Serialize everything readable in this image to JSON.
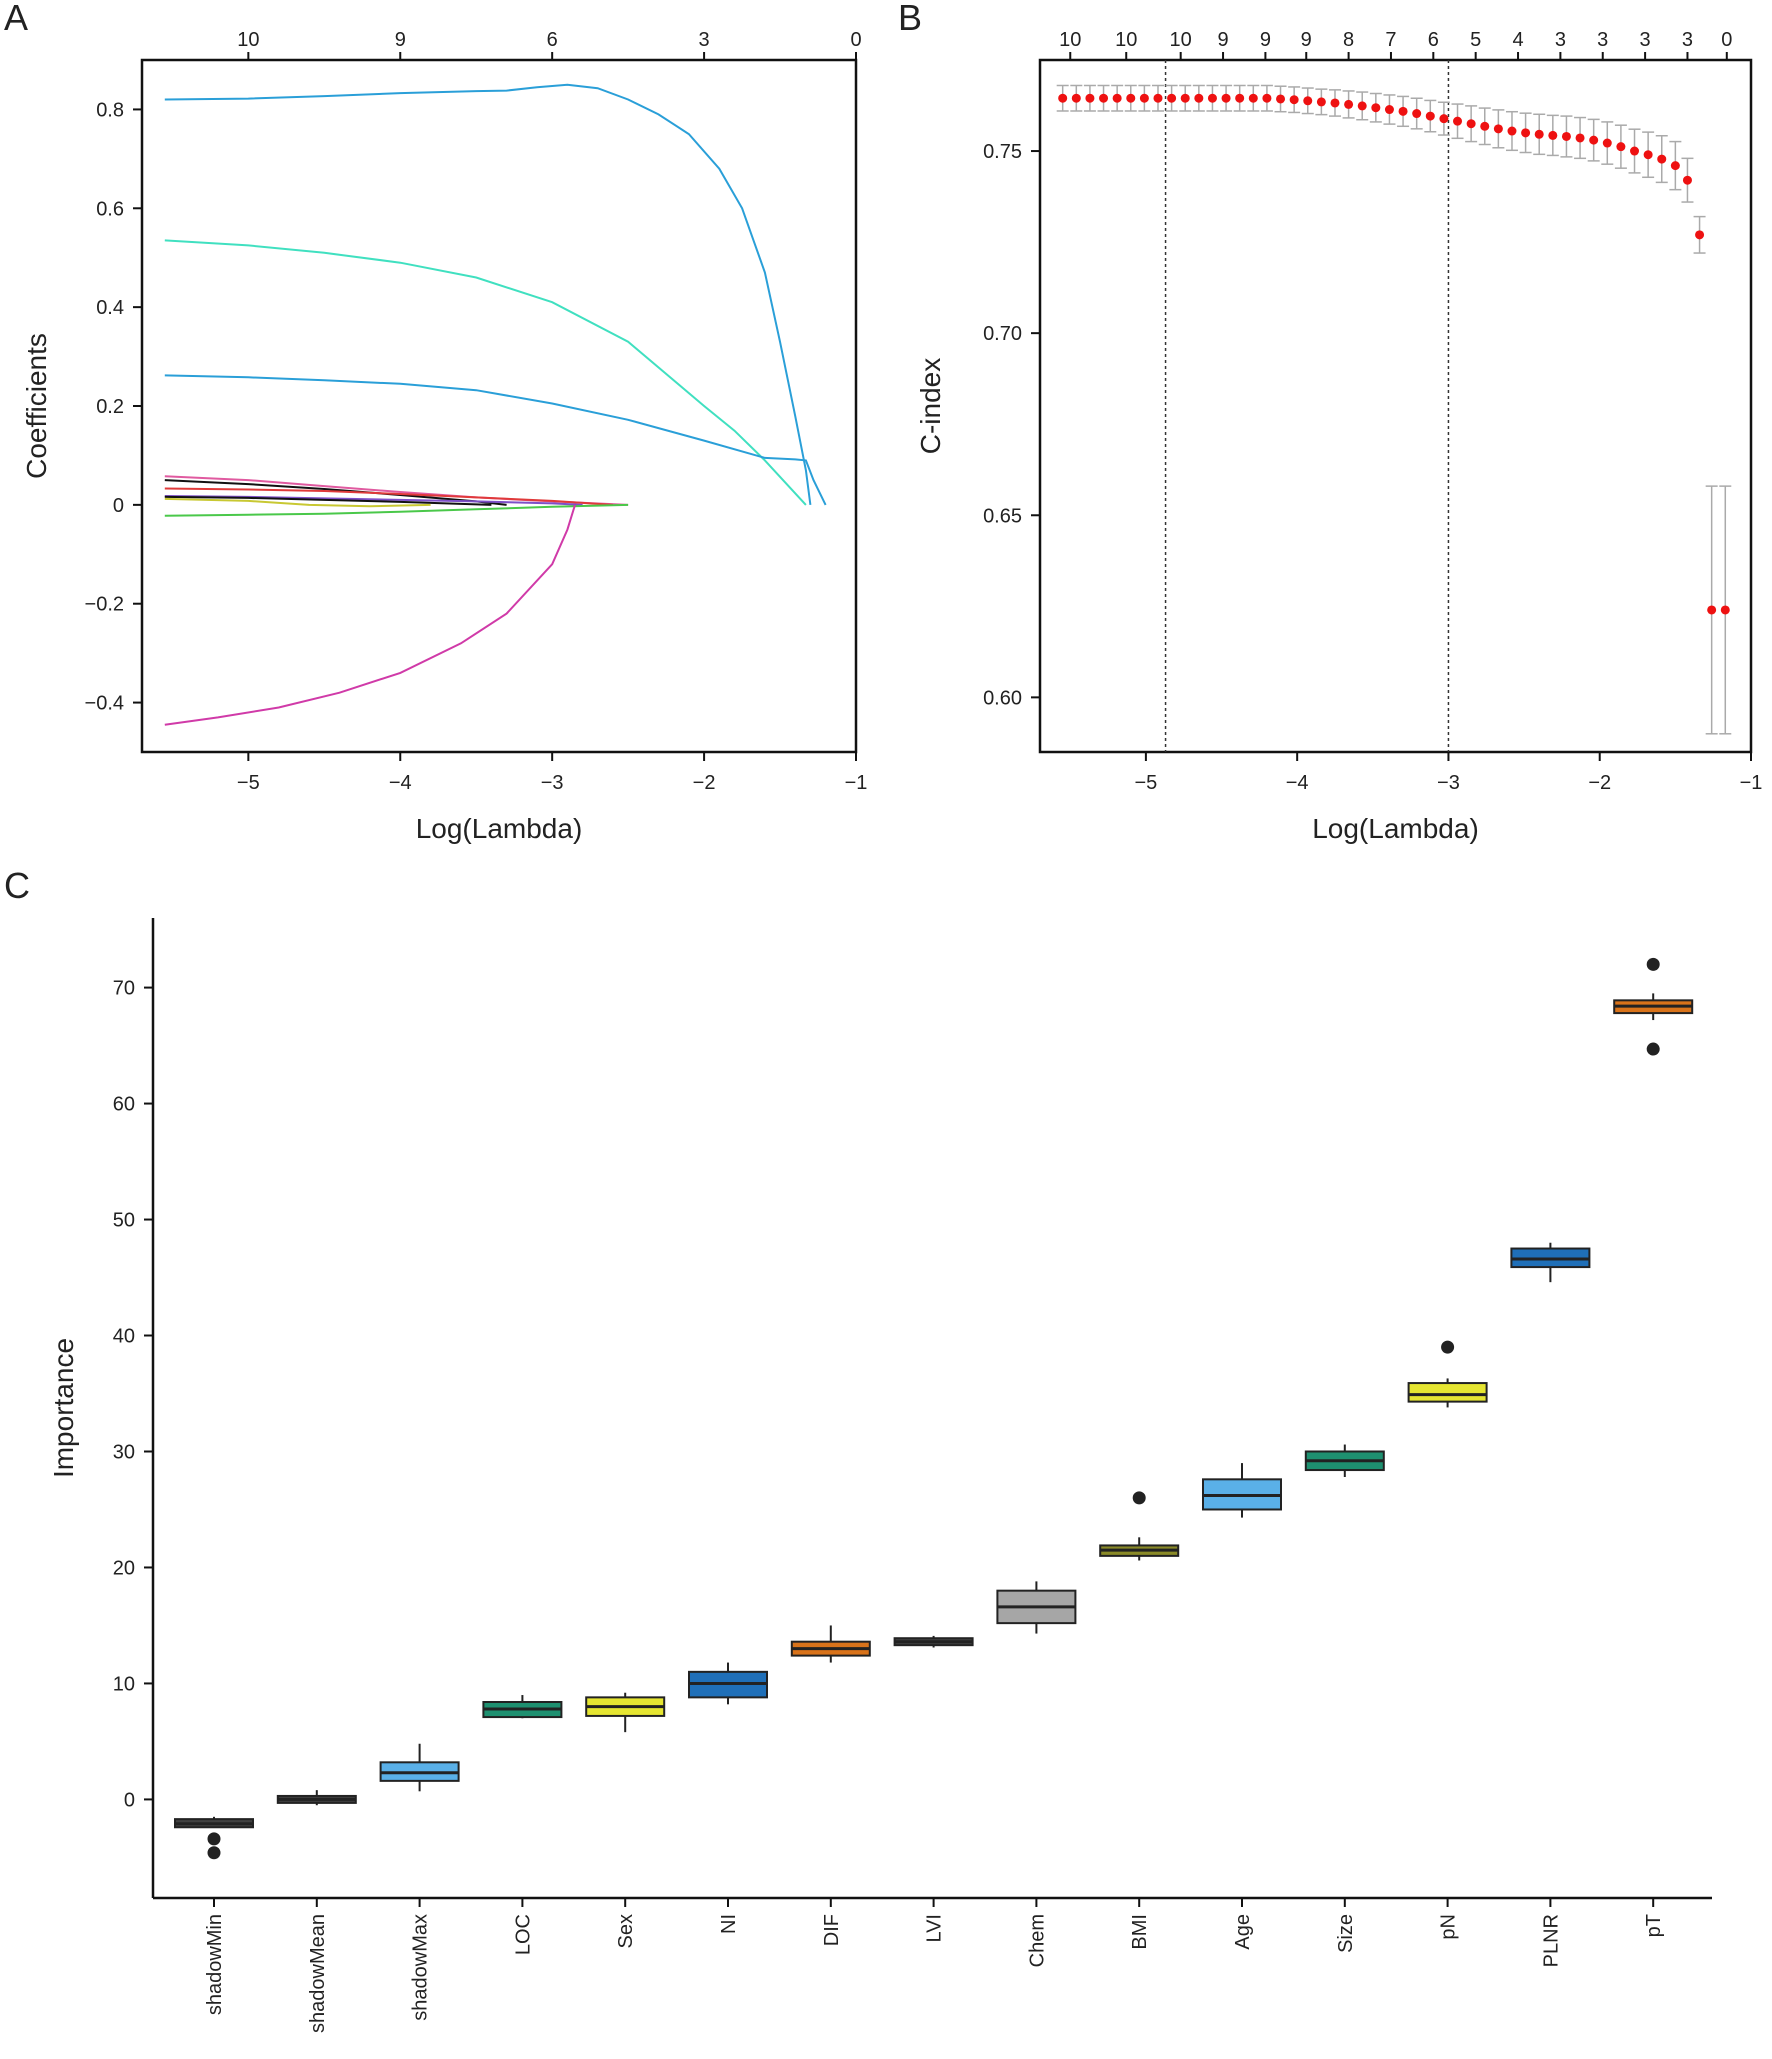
{
  "panels": {
    "a": "A",
    "b": "B",
    "c": "C"
  },
  "chart_data": [
    {
      "type": "line",
      "panel": "A",
      "xlabel": "Log(Lambda)",
      "ylabel": "Coefficients",
      "xlim": [
        -5.7,
        -1.0
      ],
      "ylim": [
        -0.5,
        0.9
      ],
      "xticks": [
        -5,
        -4,
        -3,
        -2,
        -1
      ],
      "yticks": [
        -0.4,
        -0.2,
        0,
        0.2,
        0.4,
        0.6,
        0.8
      ],
      "top_axis": {
        "ticks": [
          -5,
          -4,
          -3,
          -2,
          -1
        ],
        "labels": [
          "10",
          "9",
          "6",
          "3",
          "0"
        ]
      },
      "series": [
        {
          "color": "#2a9fd8",
          "x": [
            -5.55,
            -5.0,
            -4.5,
            -4.0,
            -3.5,
            -3.3,
            -3.1,
            -2.9,
            -2.7,
            -2.5,
            -2.3,
            -2.1,
            -1.9,
            -1.75,
            -1.6,
            -1.5,
            -1.4,
            -1.33,
            -1.3
          ],
          "y": [
            0.82,
            0.822,
            0.827,
            0.833,
            0.837,
            0.838,
            0.845,
            0.85,
            0.843,
            0.82,
            0.79,
            0.75,
            0.68,
            0.6,
            0.47,
            0.33,
            0.18,
            0.07,
            0.0
          ]
        },
        {
          "color": "#40e0c0",
          "x": [
            -5.55,
            -5.0,
            -4.5,
            -4.0,
            -3.5,
            -3.0,
            -2.5,
            -2.0,
            -1.8,
            -1.6,
            -1.45,
            -1.33
          ],
          "y": [
            0.535,
            0.525,
            0.51,
            0.49,
            0.46,
            0.41,
            0.33,
            0.2,
            0.15,
            0.09,
            0.04,
            0.0
          ]
        },
        {
          "color": "#2a9fd8",
          "x": [
            -5.55,
            -5.0,
            -4.5,
            -4.0,
            -3.5,
            -3.0,
            -2.5,
            -2.0,
            -1.6,
            -1.4,
            -1.33,
            -1.28,
            -1.2
          ],
          "y": [
            0.262,
            0.258,
            0.252,
            0.245,
            0.232,
            0.205,
            0.172,
            0.13,
            0.095,
            0.092,
            0.09,
            0.05,
            0.0
          ]
        },
        {
          "color": "#e05aa0",
          "x": [
            -5.55,
            -5.0,
            -4.5,
            -4.0,
            -3.5,
            -3.0,
            -2.5
          ],
          "y": [
            0.058,
            0.05,
            0.038,
            0.026,
            0.015,
            0.007,
            0.0
          ]
        },
        {
          "color": "#111111",
          "x": [
            -5.55,
            -5.0,
            -4.5,
            -4.0,
            -3.5,
            -3.3
          ],
          "y": [
            0.05,
            0.042,
            0.032,
            0.02,
            0.007,
            0.0
          ]
        },
        {
          "color": "#e03a3a",
          "x": [
            -5.55,
            -5.0,
            -4.5,
            -4.0,
            -3.5,
            -3.0,
            -2.6
          ],
          "y": [
            0.033,
            0.031,
            0.028,
            0.022,
            0.015,
            0.008,
            0.0
          ]
        },
        {
          "color": "#7d50c8",
          "x": [
            -5.55,
            -5.0,
            -4.5,
            -4.0,
            -3.5,
            -3.0,
            -2.8
          ],
          "y": [
            0.018,
            0.016,
            0.013,
            0.01,
            0.007,
            0.003,
            0.0
          ]
        },
        {
          "color": "#111111",
          "x": [
            -5.55,
            -5.0,
            -4.5,
            -4.0,
            -3.6,
            -3.4
          ],
          "y": [
            0.016,
            0.014,
            0.01,
            0.006,
            0.002,
            0.0
          ]
        },
        {
          "color": "#c8c832",
          "x": [
            -5.55,
            -5.0,
            -4.6,
            -4.2,
            -3.8
          ],
          "y": [
            0.012,
            0.008,
            0.0,
            -0.003,
            0.0
          ]
        },
        {
          "color": "#4ac84a",
          "x": [
            -5.55,
            -5.0,
            -4.5,
            -4.0,
            -3.5,
            -3.0,
            -2.5
          ],
          "y": [
            -0.022,
            -0.02,
            -0.018,
            -0.014,
            -0.009,
            -0.004,
            0.0
          ]
        },
        {
          "color": "#d03aa8",
          "x": [
            -5.55,
            -5.2,
            -4.8,
            -4.4,
            -4.0,
            -3.6,
            -3.3,
            -3.0,
            -2.9,
            -2.85
          ],
          "y": [
            -0.445,
            -0.43,
            -0.41,
            -0.38,
            -0.34,
            -0.28,
            -0.22,
            -0.12,
            -0.05,
            0.0
          ]
        }
      ],
      "grid": false
    },
    {
      "type": "scatter",
      "panel": "B",
      "xlabel": "Log(Lambda)",
      "ylabel": "C-index",
      "xlim": [
        -5.7,
        -1.0
      ],
      "ylim": [
        0.585,
        0.775
      ],
      "xticks": [
        -5,
        -4,
        -3,
        -2,
        -1
      ],
      "yticks": [
        0.6,
        0.65,
        0.7,
        0.75
      ],
      "top_axis": {
        "ticks": [
          -5.5,
          -5.13,
          -4.77,
          -4.49,
          -4.21,
          -3.94,
          -3.66,
          -3.38,
          -3.1,
          -2.82,
          -2.54,
          -2.26,
          -1.98,
          -1.7,
          -1.42,
          -1.16
        ],
        "labels": [
          "10",
          "10",
          "10",
          "9",
          "9",
          "9",
          "8",
          "7",
          "6",
          "5",
          "4",
          "3",
          "3",
          "3",
          "3",
          "0"
        ]
      },
      "vlines": [
        -4.87,
        -3.0
      ],
      "x": [
        -5.55,
        -5.46,
        -5.37,
        -5.28,
        -5.19,
        -5.1,
        -5.01,
        -4.92,
        -4.83,
        -4.74,
        -4.65,
        -4.56,
        -4.47,
        -4.38,
        -4.29,
        -4.2,
        -4.11,
        -4.02,
        -3.93,
        -3.84,
        -3.75,
        -3.66,
        -3.57,
        -3.48,
        -3.39,
        -3.3,
        -3.21,
        -3.12,
        -3.03,
        -2.94,
        -2.85,
        -2.76,
        -2.67,
        -2.58,
        -2.49,
        -2.4,
        -2.31,
        -2.22,
        -2.13,
        -2.04,
        -1.95,
        -1.86,
        -1.77,
        -1.68,
        -1.59,
        -1.5,
        -1.42,
        -1.34,
        -1.26,
        -1.17
      ],
      "y": [
        0.7645,
        0.7645,
        0.7645,
        0.7645,
        0.7645,
        0.7645,
        0.7645,
        0.7645,
        0.7645,
        0.7645,
        0.7645,
        0.7645,
        0.7645,
        0.7645,
        0.7645,
        0.7645,
        0.7643,
        0.7641,
        0.7638,
        0.7635,
        0.7632,
        0.7628,
        0.7624,
        0.7619,
        0.7614,
        0.7609,
        0.7603,
        0.7596,
        0.7589,
        0.7582,
        0.7575,
        0.7568,
        0.7561,
        0.7555,
        0.755,
        0.7546,
        0.7543,
        0.754,
        0.7536,
        0.753,
        0.7522,
        0.7512,
        0.75,
        0.749,
        0.7478,
        0.746,
        0.742,
        0.727,
        0.624,
        0.624
      ],
      "err": [
        0.0035,
        0.0035,
        0.0035,
        0.0035,
        0.0035,
        0.0035,
        0.0035,
        0.0035,
        0.0035,
        0.0035,
        0.0035,
        0.0035,
        0.0035,
        0.0035,
        0.0035,
        0.0035,
        0.0035,
        0.0035,
        0.0035,
        0.0035,
        0.0036,
        0.0037,
        0.0038,
        0.0039,
        0.004,
        0.0041,
        0.0042,
        0.0043,
        0.0045,
        0.0047,
        0.0049,
        0.005,
        0.0052,
        0.0053,
        0.0054,
        0.0055,
        0.0055,
        0.0056,
        0.0056,
        0.0057,
        0.0058,
        0.0059,
        0.006,
        0.0062,
        0.0064,
        0.0066,
        0.006,
        0.005,
        0.034,
        0.034
      ],
      "grid": false
    },
    {
      "type": "box",
      "panel": "C",
      "ylabel": "Importance",
      "ylim": [
        -8.5,
        76
      ],
      "yticks": [
        0,
        10,
        20,
        30,
        40,
        50,
        60,
        70
      ],
      "categories": [
        "shadowMin",
        "shadowMean",
        "shadowMax",
        "LOC",
        "Sex",
        "NI",
        "DIF",
        "LVI",
        "Chem",
        "BMI",
        "Age",
        "Size",
        "pN",
        "PLNR",
        "pT"
      ],
      "boxes": [
        {
          "min": -2.4,
          "q1": -2.4,
          "median": -2.1,
          "q3": -1.7,
          "max": -1.5,
          "outliers": [
            -3.4,
            -4.6
          ],
          "color": "#404040"
        },
        {
          "min": -0.5,
          "q1": -0.3,
          "median": 0.0,
          "q3": 0.3,
          "max": 0.8,
          "outliers": [],
          "color": "#404040"
        },
        {
          "min": 0.7,
          "q1": 1.6,
          "median": 2.3,
          "q3": 3.2,
          "max": 4.8,
          "outliers": [],
          "color": "#5ab0e8"
        },
        {
          "min": 7.0,
          "q1": 7.1,
          "median": 7.8,
          "q3": 8.4,
          "max": 9.0,
          "outliers": [],
          "color": "#1e9070"
        },
        {
          "min": 5.8,
          "q1": 7.2,
          "median": 8.0,
          "q3": 8.8,
          "max": 9.2,
          "outliers": [],
          "color": "#e6e632"
        },
        {
          "min": 8.2,
          "q1": 8.8,
          "median": 10.0,
          "q3": 11.0,
          "max": 11.8,
          "outliers": [],
          "color": "#1f6fb8"
        },
        {
          "min": 11.8,
          "q1": 12.4,
          "median": 13.0,
          "q3": 13.6,
          "max": 15.0,
          "outliers": [],
          "color": "#d9731a"
        },
        {
          "min": 13.1,
          "q1": 13.3,
          "median": 13.6,
          "q3": 13.9,
          "max": 14.1,
          "outliers": [],
          "color": "#404040"
        },
        {
          "min": 14.3,
          "q1": 15.2,
          "median": 16.6,
          "q3": 18.0,
          "max": 18.8,
          "outliers": [],
          "color": "#a6a6a6"
        },
        {
          "min": 20.6,
          "q1": 21.0,
          "median": 21.5,
          "q3": 21.9,
          "max": 22.6,
          "outliers": [
            26.0
          ],
          "color": "#8a8a28"
        },
        {
          "min": 24.3,
          "q1": 25.0,
          "median": 26.2,
          "q3": 27.6,
          "max": 29.0,
          "outliers": [],
          "color": "#5ab0e8"
        },
        {
          "min": 27.8,
          "q1": 28.4,
          "median": 29.2,
          "q3": 30.0,
          "max": 30.6,
          "outliers": [],
          "color": "#1e9070"
        },
        {
          "min": 33.8,
          "q1": 34.3,
          "median": 34.9,
          "q3": 35.9,
          "max": 36.3,
          "outliers": [
            39.0
          ],
          "color": "#e6e632"
        },
        {
          "min": 44.6,
          "q1": 45.9,
          "median": 46.6,
          "q3": 47.5,
          "max": 48.0,
          "outliers": [],
          "color": "#1f6fb8"
        },
        {
          "min": 67.2,
          "q1": 67.8,
          "median": 68.4,
          "q3": 68.9,
          "max": 69.5,
          "outliers": [
            72.0,
            64.7
          ],
          "color": "#d9731a"
        }
      ],
      "grid": false
    }
  ]
}
